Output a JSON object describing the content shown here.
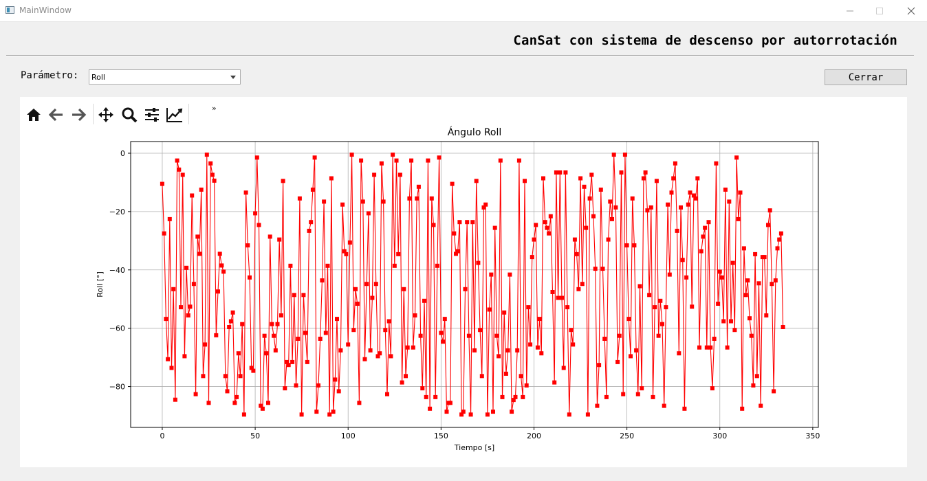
{
  "window": {
    "title": "MainWindow"
  },
  "header": {
    "title": "CanSat con sistema de descenso por autorrotación"
  },
  "controls": {
    "param_label": "Parámetro:",
    "param_value": "Roll",
    "close_label": "Cerrar"
  },
  "toolbar": {
    "items": [
      "home-icon",
      "back-icon",
      "forward-icon",
      "pan-icon",
      "zoom-icon",
      "configure-subplots-icon",
      "edit-axis-icon"
    ],
    "more": "»"
  },
  "chart_data": {
    "type": "line",
    "title": "Ángulo Roll",
    "xlabel": "Tiempo [s]",
    "ylabel": "Roll [°]",
    "xlim": [
      -17,
      353
    ],
    "ylim": [
      -94,
      4
    ],
    "xticks": [
      0,
      50,
      100,
      150,
      200,
      250,
      300,
      350
    ],
    "yticks": [
      0,
      -20,
      -40,
      -60,
      -80
    ],
    "grid": true,
    "color": "#ff0000",
    "marker": "square",
    "series": [
      {
        "x_start": 0,
        "x_step": 1,
        "values": [
          -10.5,
          -27.5,
          -56.8,
          -70.6,
          -22.6,
          -73.6,
          -46.6,
          -84.5,
          -2.5,
          -5.6,
          -52.8,
          -7.4,
          -69.6,
          -39.3,
          -55.6,
          -52.6,
          -14.5,
          -44.8,
          -82.6,
          -28.6,
          -34.5,
          -12.5,
          -76.4,
          -65.6,
          -0.5,
          -85.6,
          -3.5,
          -7.4,
          -9.4,
          -62.4,
          -47.4,
          -34.5,
          -38.5,
          -40.6,
          -76.4,
          -81.6,
          -59.6,
          -57.6,
          -54.6,
          -85.6,
          -83.6,
          -68.6,
          -76.4,
          -58.6,
          -89.6,
          -13.5,
          -31.6,
          -42.6,
          -73.6,
          -74.6,
          -20.6,
          -1.5,
          -24.6,
          -86.6,
          -87.6,
          -62.6,
          -68.6,
          -85.6,
          -28.6,
          -58.6,
          -62.6,
          -67.6,
          -58.6,
          -29.6,
          -55.6,
          -9.5,
          -80.6,
          -71.6,
          -72.6,
          -38.6,
          -71.6,
          -48.6,
          -79.6,
          -63.6,
          -15.5,
          -89.6,
          -48.6,
          -61.6,
          -71.6,
          -26.6,
          -23.6,
          -12.5,
          -1.5,
          -88.6,
          -79.6,
          -63.6,
          -43.6,
          -16.6,
          -61.6,
          -38.6,
          -89.6,
          -8.6,
          -88.6,
          -77.6,
          -56.8,
          -81.6,
          -67.6,
          -17.6,
          -33.6,
          -34.6,
          -65.6,
          -30.6,
          -0.5,
          -60.6,
          -46.6,
          -51.6,
          -85.6,
          -2.5,
          -16.6,
          -70.6,
          -44.8,
          -20.6,
          -67.6,
          -49.6,
          -7.4,
          -44.8,
          -69.6,
          -68.6,
          -3.5,
          -16.6,
          -60.6,
          -82.6,
          -57.6,
          -69.6,
          -0.5,
          -38.6,
          -2.5,
          -34.6,
          -7.4,
          -78.6,
          -46.6,
          -76.4,
          -66.6,
          -15.5,
          -2.5,
          -66.6,
          -55.6,
          -15.5,
          -11.5,
          -62.6,
          -80.6,
          -50.6,
          -83.6,
          -2.5,
          -87.6,
          -15.5,
          -24.6,
          -83.6,
          -38.6,
          -1.5,
          -61.6,
          -64.6,
          -56.8,
          -88.6,
          -85.6,
          -85.6,
          -10.5,
          -27.5,
          -34.5,
          -33.6,
          -23.6,
          -89.6,
          -88.6,
          -46.6,
          -23.6,
          -62.6,
          -89.6,
          -23.6,
          -67.6,
          -9.5,
          -37.6,
          -60.6,
          -76.4,
          -18.6,
          -17.6,
          -89.6,
          -53.6,
          -41.6,
          -88.6,
          -25.6,
          -62.6,
          -69.6,
          -2.5,
          -83.6,
          -54.6,
          -75.6,
          -67.6,
          -41.6,
          -88.6,
          -84.6,
          -83.6,
          -67.6,
          -2.5,
          -76.4,
          -83.6,
          -9.5,
          -79.6,
          -52.8,
          -65.6,
          -35.6,
          -29.6,
          -24.6,
          -66.6,
          -56.8,
          -68.6,
          -8.6,
          -23.6,
          -25.6,
          -27.5,
          -21.6,
          -47.6,
          -78.6,
          -6.6,
          -49.6,
          -6.6,
          -49.6,
          -73.6,
          -6.6,
          -52.8,
          -89.6,
          -60.6,
          -65.6,
          -29.6,
          -34.6,
          -46.6,
          -8.6,
          -44.8,
          -11.5,
          -25.6,
          -89.6,
          -15.5,
          -7.4,
          -21.6,
          -39.6,
          -86.6,
          -72.6,
          -12.5,
          -39.6,
          -63.6,
          -83.6,
          -29.6,
          -16.6,
          -22.6,
          -0.5,
          -18.6,
          -71.6,
          -62.6,
          -6.6,
          -82.6,
          -0.5,
          -31.6,
          -56.8,
          -69.6,
          -15.5,
          -31.6,
          -67.6,
          -82.6,
          -45.6,
          -80.6,
          -8.6,
          -6.6,
          -19.6,
          -48.6,
          -18.6,
          -83.6,
          -52.8,
          -9.5,
          -62.6,
          -50.6,
          -58.6,
          -86.6,
          -52.8,
          -17.6,
          -41.6,
          -13.5,
          -8.6,
          -3.5,
          -26.6,
          -68.6,
          -18.6,
          -36.6,
          -87.6,
          -42.6,
          -17.6,
          -13.5,
          -52.6,
          -14.5,
          -15.5,
          -8.6,
          -66.6,
          -33.6,
          -28.6,
          -25.6,
          -66.6,
          -23.6,
          -66.6,
          -80.6,
          -63.6,
          -3.5,
          -51.6,
          -40.6,
          -42.6,
          -57.6,
          -12.5,
          -66.6,
          -16.6,
          -57.6,
          -37.6,
          -60.6,
          -1.5,
          -22.6,
          -13.5,
          -87.6,
          -32.6,
          -48.6,
          -43.6,
          -56.6,
          -62.6,
          -79.6,
          -34.6,
          -76.4,
          -44.6,
          -86.6,
          -35.6,
          -35.6,
          -55.6,
          -24.6,
          -19.6,
          -44.8,
          -81.6,
          -43.6,
          -32.6,
          -29.6,
          -27.5,
          -59.6
        ]
      }
    ]
  }
}
